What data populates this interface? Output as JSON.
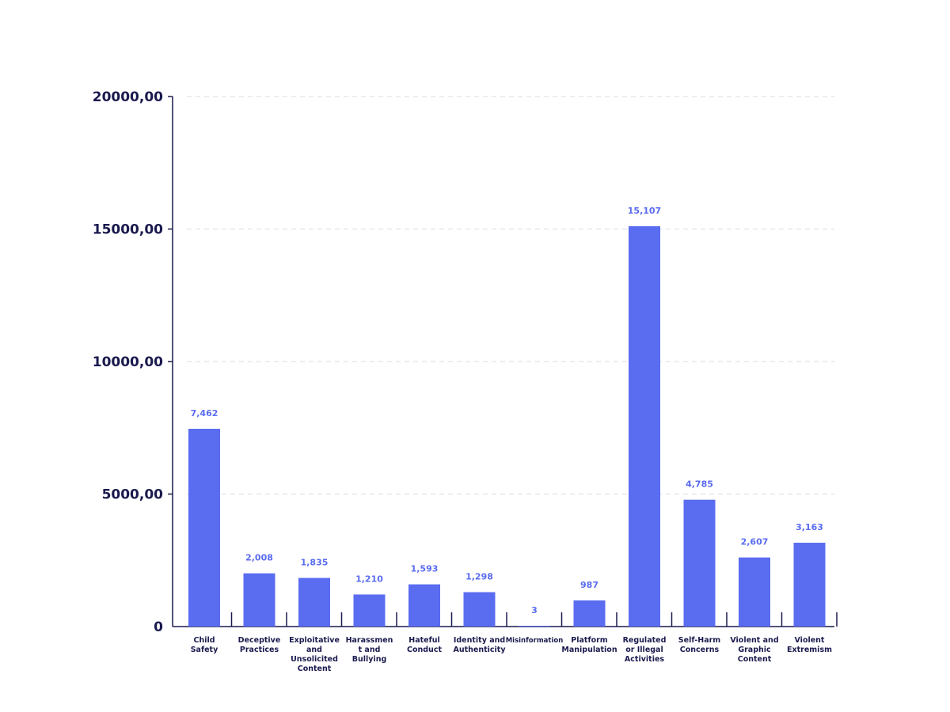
{
  "chart_data": {
    "type": "bar",
    "title": "",
    "xlabel": "",
    "ylabel": "",
    "categories": [
      "Child Safety",
      "Deceptive Practices",
      "Exploitative and Unsolicited Content",
      "Harassment and Bullying",
      "Hateful Conduct",
      "Identity and Authenticity",
      "Misinformation",
      "Platform Manipulation",
      "Regulated or Illegal Activities",
      "Self-Harm Concerns",
      "Violent and Graphic Content",
      "Violent Extremism"
    ],
    "category_label_lines": [
      [
        "Child",
        "Safety"
      ],
      [
        "Deceptive",
        "Practices"
      ],
      [
        "Exploitative",
        "and",
        "Unsolicited",
        "Content"
      ],
      [
        "Harassmen",
        "t and",
        "Bullying"
      ],
      [
        "Hateful",
        "Conduct"
      ],
      [
        "Identity and",
        "Authenticity"
      ],
      [
        "Misinformation"
      ],
      [
        "Platform",
        "Manipulation"
      ],
      [
        "Regulated",
        "or Illegal",
        "Activities"
      ],
      [
        "Self-Harm",
        "Concerns"
      ],
      [
        "Violent and",
        "Graphic",
        "Content"
      ],
      [
        "Violent",
        "Extremism"
      ]
    ],
    "values": [
      7462,
      2008,
      1835,
      1210,
      1593,
      1298,
      3,
      987,
      15107,
      4785,
      2607,
      3163
    ],
    "value_labels": [
      "7,462",
      "2,008",
      "1,835",
      "1,210",
      "1,593",
      "1,298",
      "3",
      "987",
      "15,107",
      "4,785",
      "2,607",
      "3,163"
    ],
    "ylim": [
      0,
      20000
    ],
    "yticks": [
      0,
      5000,
      10000,
      15000,
      20000
    ],
    "ytick_labels": [
      "0",
      "5000,00",
      "10000,00",
      "15000,00",
      "20000,00"
    ],
    "grid": true,
    "legend": "none",
    "colors": {
      "bar": "#5a6cf0",
      "axis": "#1a1a4e",
      "grid": "#d8dbe6",
      "data_label": "#5a6cf0"
    }
  }
}
